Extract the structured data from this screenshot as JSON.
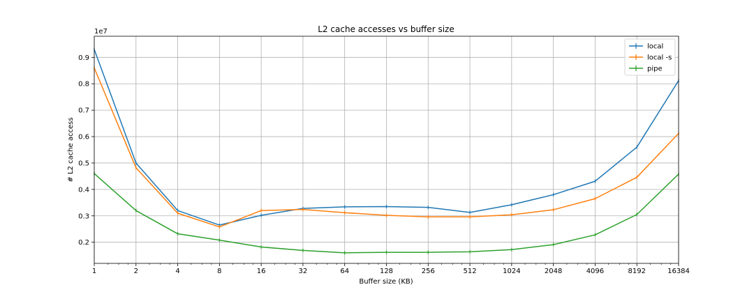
{
  "chart_data": {
    "type": "line",
    "title": "L2 cache accesses vs buffer size",
    "xlabel": "Buffer size (KB)",
    "ylabel": "# L2 cache access",
    "y_offset_label": "1e7",
    "x_scale": "log2",
    "x": [
      1,
      2,
      4,
      8,
      16,
      32,
      64,
      128,
      256,
      512,
      1024,
      2048,
      4096,
      8192,
      16384
    ],
    "x_tick_labels": [
      "1",
      "2",
      "4",
      "8",
      "16",
      "32",
      "64",
      "128",
      "256",
      "512",
      "1024",
      "2048",
      "4096",
      "8192",
      "16384"
    ],
    "y_ticks": [
      0.2,
      0.3,
      0.4,
      0.5,
      0.6,
      0.7,
      0.8,
      0.9
    ],
    "y_tick_labels": [
      "0.2",
      "0.3",
      "0.4",
      "0.5",
      "0.6",
      "0.7",
      "0.8",
      "0.9"
    ],
    "ylim": [
      0.12,
      0.98
    ],
    "grid": true,
    "legend_position": "top-right",
    "series": [
      {
        "name": "local",
        "color": "#1f77b4",
        "values": [
          0.93,
          0.5,
          0.32,
          0.265,
          0.302,
          0.328,
          0.334,
          0.335,
          0.332,
          0.313,
          0.342,
          0.38,
          0.431,
          0.56,
          0.812
        ]
      },
      {
        "name": "local -s",
        "color": "#ff7f0e",
        "values": [
          0.86,
          0.482,
          0.31,
          0.258,
          0.32,
          0.324,
          0.312,
          0.302,
          0.296,
          0.296,
          0.304,
          0.323,
          0.365,
          0.446,
          0.612
        ]
      },
      {
        "name": "pipe",
        "color": "#2ca02c",
        "values": [
          0.46,
          0.32,
          0.232,
          0.208,
          0.182,
          0.169,
          0.16,
          0.162,
          0.162,
          0.164,
          0.172,
          0.191,
          0.228,
          0.305,
          0.458
        ]
      }
    ]
  }
}
